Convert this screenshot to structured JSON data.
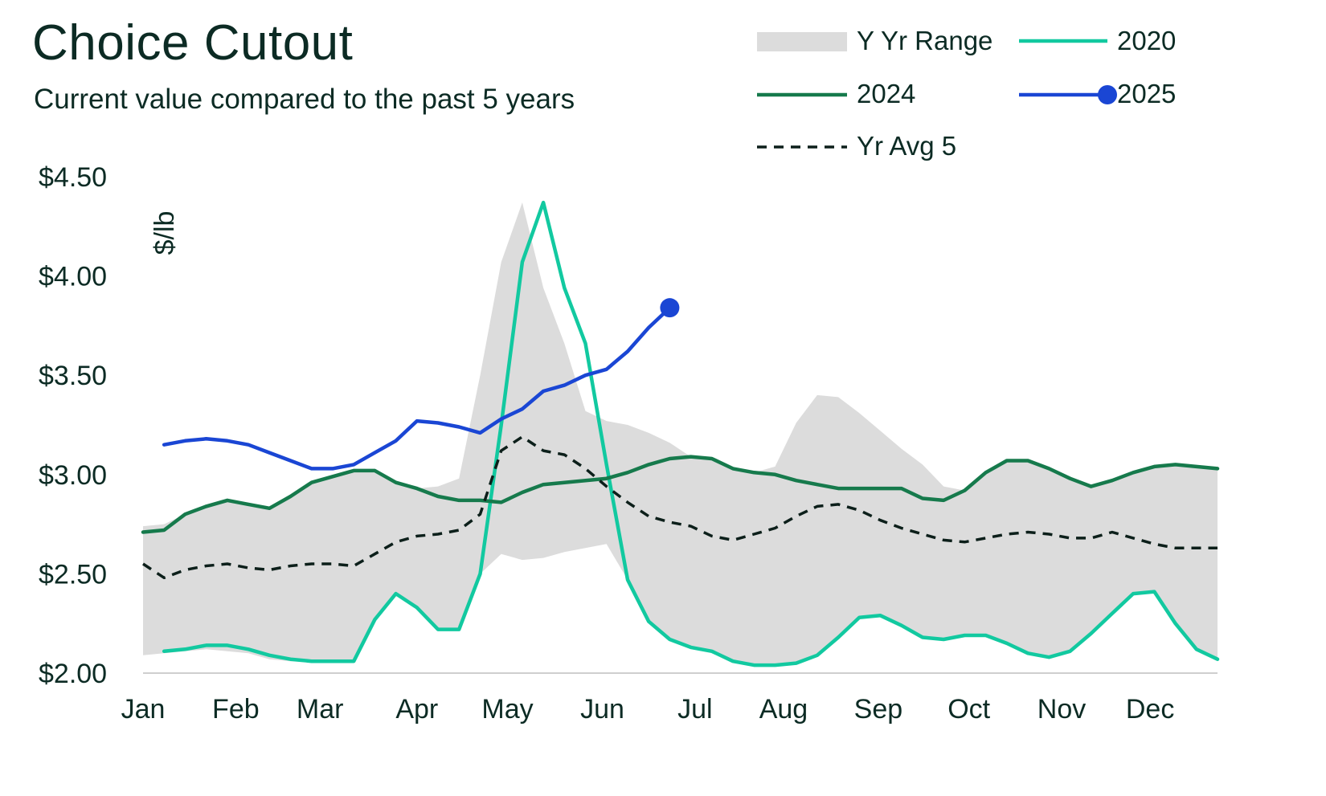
{
  "header": {
    "title": "Choice Cutout",
    "subtitle": "Current value compared to the past 5 years"
  },
  "colors": {
    "range": "#dcdcdc",
    "y2020": "#12c9a0",
    "y2024": "#167a4c",
    "y2025": "#1a46d4",
    "avg": "#0c1f1a",
    "axis_line": "#cfcfcf",
    "text": "#0c2b24"
  },
  "legend": {
    "range": "Y Yr Range",
    "y2020": "2020",
    "y2024": "2024",
    "y2025": "2025",
    "avg": "Yr Avg 5"
  },
  "chart_data": {
    "type": "line",
    "title": "Choice Cutout",
    "subtitle": "Current value compared to the past 5 years",
    "ylabel": "$/lb",
    "ylim": [
      2.0,
      4.5
    ],
    "yticks": [
      "$2.00",
      "$2.50",
      "$3.00",
      "$3.50",
      "$4.00",
      "$4.50"
    ],
    "ytick_values": [
      2.0,
      2.5,
      3.0,
      3.5,
      4.0,
      4.5
    ],
    "x_weeks": 52,
    "month_labels": [
      "Jan",
      "Feb",
      "Mar",
      "Apr",
      "May",
      "Jun",
      "Jul",
      "Aug",
      "Sep",
      "Oct",
      "Nov",
      "Dec"
    ],
    "month_week_positions": [
      0,
      4.4,
      8.4,
      13,
      17.3,
      21.8,
      26.2,
      30.4,
      34.9,
      39.2,
      43.6,
      47.8
    ],
    "legend_position": "top-right",
    "grid": false,
    "range_band": {
      "name": "Y Yr Range",
      "weeks": [
        0,
        1,
        2,
        3,
        4,
        5,
        6,
        7,
        8,
        9,
        10,
        11,
        12,
        13,
        14,
        15,
        16,
        17,
        18,
        19,
        20,
        21,
        22,
        23,
        24,
        25,
        26,
        27,
        28,
        29,
        30,
        31,
        32,
        33,
        34,
        35,
        36,
        37,
        38,
        39,
        40,
        41,
        42,
        43,
        44,
        45,
        46,
        47,
        48,
        49,
        50,
        51
      ],
      "upper": [
        2.74,
        2.75,
        2.8,
        2.84,
        2.87,
        2.85,
        2.83,
        2.89,
        2.96,
        2.99,
        3.02,
        3.02,
        2.96,
        2.93,
        2.94,
        2.98,
        3.5,
        4.07,
        4.37,
        3.94,
        3.66,
        3.32,
        3.27,
        3.25,
        3.21,
        3.16,
        3.09,
        3.08,
        3.03,
        3.01,
        3.04,
        3.26,
        3.4,
        3.39,
        3.31,
        3.22,
        3.13,
        3.05,
        2.94,
        2.92,
        3.01,
        3.07,
        3.07,
        3.03,
        2.98,
        2.94,
        2.97,
        3.01,
        3.04,
        3.05,
        3.04,
        3.03
      ],
      "lower": [
        2.09,
        2.1,
        2.11,
        2.12,
        2.11,
        2.1,
        2.07,
        2.06,
        2.06,
        2.06,
        2.06,
        2.27,
        2.4,
        2.33,
        2.22,
        2.22,
        2.5,
        2.6,
        2.57,
        2.58,
        2.61,
        2.63,
        2.65,
        2.47,
        2.26,
        2.17,
        2.13,
        2.11,
        2.06,
        2.04,
        2.04,
        2.05,
        2.09,
        2.18,
        2.28,
        2.29,
        2.24,
        2.18,
        2.17,
        2.19,
        2.19,
        2.15,
        2.1,
        2.08,
        2.11,
        2.2,
        2.3,
        2.4,
        2.41,
        2.25,
        2.12,
        2.07
      ]
    },
    "series": [
      {
        "name": "2020",
        "key": "y2020",
        "weeks": [
          1,
          2,
          3,
          4,
          5,
          6,
          7,
          8,
          9,
          10,
          11,
          12,
          13,
          14,
          15,
          16,
          17,
          18,
          19,
          20,
          21,
          22,
          23,
          24,
          25,
          26,
          27,
          28,
          29,
          30,
          31,
          32,
          33,
          34,
          35,
          36,
          37,
          38,
          39,
          40,
          41,
          42,
          43,
          44,
          45,
          46,
          47,
          48,
          49,
          50,
          51
        ],
        "values": [
          2.11,
          2.12,
          2.14,
          2.14,
          2.12,
          2.09,
          2.07,
          2.06,
          2.06,
          2.06,
          2.27,
          2.4,
          2.33,
          2.22,
          2.22,
          2.5,
          3.25,
          4.07,
          4.37,
          3.94,
          3.66,
          3.05,
          2.47,
          2.26,
          2.17,
          2.13,
          2.11,
          2.06,
          2.04,
          2.04,
          2.05,
          2.09,
          2.18,
          2.28,
          2.29,
          2.24,
          2.18,
          2.17,
          2.19,
          2.19,
          2.15,
          2.1,
          2.08,
          2.11,
          2.2,
          2.3,
          2.4,
          2.41,
          2.25,
          2.12,
          2.07
        ]
      },
      {
        "name": "2024",
        "key": "y2024",
        "weeks": [
          0,
          1,
          2,
          3,
          4,
          5,
          6,
          7,
          8,
          9,
          10,
          11,
          12,
          13,
          14,
          15,
          16,
          17,
          18,
          19,
          20,
          21,
          22,
          23,
          24,
          25,
          26,
          27,
          28,
          29,
          30,
          31,
          32,
          33,
          34,
          35,
          36,
          37,
          38,
          39,
          40,
          41,
          42,
          43,
          44,
          45,
          46,
          47,
          48,
          49,
          50,
          51
        ],
        "values": [
          2.71,
          2.72,
          2.8,
          2.84,
          2.87,
          2.85,
          2.83,
          2.89,
          2.96,
          2.99,
          3.02,
          3.02,
          2.96,
          2.93,
          2.89,
          2.87,
          2.87,
          2.86,
          2.91,
          2.95,
          2.96,
          2.97,
          2.98,
          3.01,
          3.05,
          3.08,
          3.09,
          3.08,
          3.03,
          3.01,
          3.0,
          2.97,
          2.95,
          2.93,
          2.93,
          2.93,
          2.93,
          2.88,
          2.87,
          2.92,
          3.01,
          3.07,
          3.07,
          3.03,
          2.98,
          2.94,
          2.97,
          3.01,
          3.04,
          3.05,
          3.04,
          3.03
        ]
      },
      {
        "name": "2025",
        "key": "y2025",
        "weeks": [
          1,
          2,
          3,
          4,
          5,
          6,
          7,
          8,
          9,
          10,
          11,
          12,
          13,
          14,
          15,
          16,
          17,
          18,
          19,
          20,
          21,
          22,
          23,
          24,
          25
        ],
        "values": [
          3.15,
          3.17,
          3.18,
          3.17,
          3.15,
          3.11,
          3.07,
          3.03,
          3.03,
          3.05,
          3.11,
          3.17,
          3.27,
          3.26,
          3.24,
          3.21,
          3.28,
          3.33,
          3.42,
          3.45,
          3.5,
          3.53,
          3.62,
          3.74,
          3.84
        ]
      },
      {
        "name": "Yr Avg 5",
        "key": "avg",
        "weeks": [
          0,
          1,
          2,
          3,
          4,
          5,
          6,
          7,
          8,
          9,
          10,
          11,
          12,
          13,
          14,
          15,
          16,
          17,
          18,
          19,
          20,
          21,
          22,
          23,
          24,
          25,
          26,
          27,
          28,
          29,
          30,
          31,
          32,
          33,
          34,
          35,
          36,
          37,
          38,
          39,
          40,
          41,
          42,
          43,
          44,
          45,
          46,
          47,
          48,
          49,
          50,
          51
        ],
        "values": [
          2.55,
          2.48,
          2.52,
          2.54,
          2.55,
          2.53,
          2.52,
          2.54,
          2.55,
          2.55,
          2.54,
          2.6,
          2.66,
          2.69,
          2.7,
          2.72,
          2.8,
          3.12,
          3.19,
          3.12,
          3.1,
          3.03,
          2.94,
          2.86,
          2.79,
          2.76,
          2.74,
          2.69,
          2.67,
          2.7,
          2.73,
          2.79,
          2.84,
          2.85,
          2.82,
          2.77,
          2.73,
          2.7,
          2.67,
          2.66,
          2.68,
          2.7,
          2.71,
          2.7,
          2.68,
          2.68,
          2.71,
          2.68,
          2.65,
          2.63,
          2.63,
          2.63
        ]
      }
    ]
  }
}
